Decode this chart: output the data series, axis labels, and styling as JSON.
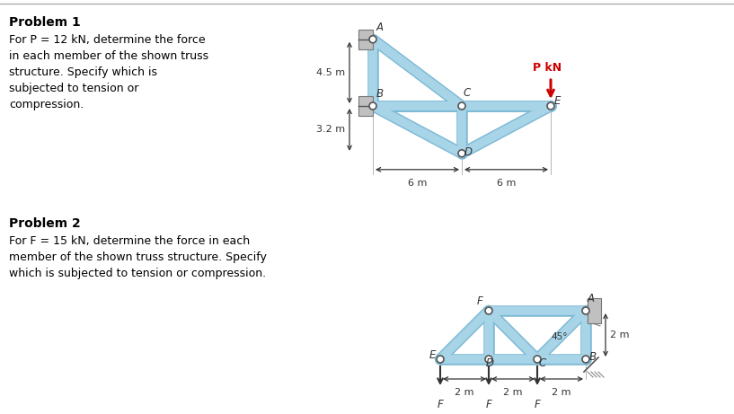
{
  "bg_color": "#ffffff",
  "truss_color": "#a8d4e8",
  "truss_edge_color": "#7ab8d4",
  "node_color": "white",
  "node_edge_color": "#555555",
  "line_color": "#333333",
  "text_color": "#000000",
  "red_color": "#cc0000",
  "member_lw": 7,
  "node_r": 4,
  "p1": {
    "title": "Problem 1",
    "text_line1": "For P = 12 kN, determine the force",
    "text_line2": "in each member of the shown truss",
    "text_line3": "structure. Specify which is",
    "text_line4": "subjected to tension or",
    "text_line5": "compression.",
    "dim_45m": "4.5 m",
    "dim_32m": "3.2 m",
    "dim_6m1": "6 m",
    "dim_6m2": "6 m",
    "label_P": "P kN"
  },
  "p2": {
    "title": "Problem 2",
    "text_line1": "For F = 15 kN, determine the force in each",
    "text_line2": "member of the shown truss structure. Specify",
    "text_line3": "which is subjected to tension or compression.",
    "dim_2m_vert": "2 m",
    "dim_2m1": "2 m",
    "dim_2m2": "2 m",
    "dim_2m3": "2 m",
    "label_45": "45°"
  }
}
